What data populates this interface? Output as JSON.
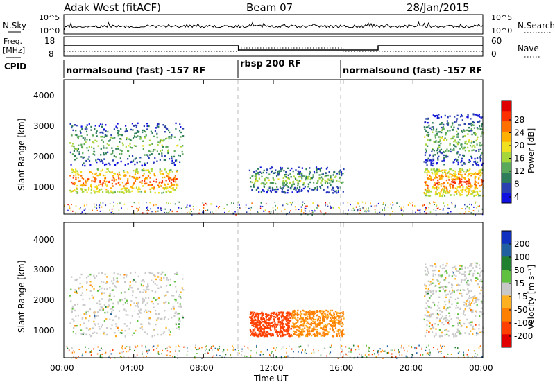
{
  "header": {
    "title": "Adak West (fitACF)",
    "beam": "Beam 07",
    "date": "28/Jan/2015"
  },
  "top_panels": {
    "nsky_label": "N.Sky",
    "nsearch_label": "N.Search",
    "nsky_ticks": [
      "10^5",
      "10^0"
    ],
    "nsearch_ticks": [
      "10^5",
      "10^0"
    ],
    "freq_label": "Freq.",
    "freq_unit": "[MHz]",
    "freq_ticks": [
      "18",
      "8"
    ],
    "nave_label": "Nave",
    "nave_ticks": [
      "60",
      "0"
    ],
    "cpid_label": "CPID"
  },
  "cpid_segments": [
    {
      "label": "normalsound (fast) -157 RF",
      "start_hour": 0,
      "end_hour": 10
    },
    {
      "label": "rbsp 200 RF",
      "start_hour": 10,
      "end_hour": 16
    },
    {
      "label": "normalsound (fast) -157 RF",
      "start_hour": 16,
      "end_hour": 24
    }
  ],
  "x_axis": {
    "label": "Time UT",
    "ticks": [
      "00:00",
      "04:00",
      "08:00",
      "12:00",
      "16:00",
      "20:00",
      "00:00"
    ],
    "range_hours": [
      0,
      24
    ]
  },
  "power_panel": {
    "ylabel": "Slant Range [km]",
    "yticks": [
      "4000",
      "3000",
      "2000",
      "1000"
    ],
    "colorbar_label": "Power [dB]",
    "colorbar_ticks": [
      "28",
      "24",
      "20",
      "16",
      "12",
      "8",
      "4"
    ],
    "colors": [
      "#1010e0",
      "#2a3fb0",
      "#2e7d5a",
      "#5aa85a",
      "#a6d63a",
      "#f0e020",
      "#ffb000",
      "#ff7000",
      "#ff3000",
      "#e00000"
    ]
  },
  "velocity_panel": {
    "ylabel": "Slant Range [km]",
    "yticks": [
      "4000",
      "3000",
      "2000",
      "1000"
    ],
    "colorbar_label": "Velocity [m s⁻¹]",
    "colorbar_ticks": [
      "200",
      "100",
      "50",
      "15",
      "-15",
      "-50",
      "-100",
      "-200"
    ],
    "colors": [
      "#1030c0",
      "#2060a0",
      "#208030",
      "#60c040",
      "#c8c8c8",
      "#ffb020",
      "#ff8000",
      "#ff4000",
      "#e00000"
    ]
  },
  "chart_data": [
    {
      "type": "heatmap",
      "title": "Power",
      "xlabel": "Time UT",
      "ylabel": "Slant Range [km]",
      "xlim_hours": [
        0,
        24
      ],
      "ylim_km": [
        180,
        4600
      ],
      "zlim_db": [
        0,
        32
      ],
      "regions": [
        {
          "t_start": 0.3,
          "t_end": 6.5,
          "r_low": 900,
          "r_high": 1700,
          "power_db": 26
        },
        {
          "t_start": 0.3,
          "t_end": 6.8,
          "r_low": 1800,
          "r_high": 3200,
          "power_db": 14
        },
        {
          "t_start": 10.6,
          "t_end": 16.0,
          "r_low": 900,
          "r_high": 1750,
          "power_db": 14
        },
        {
          "t_start": 20.6,
          "t_end": 24.0,
          "r_low": 800,
          "r_high": 1700,
          "power_db": 26
        },
        {
          "t_start": 20.6,
          "t_end": 24.0,
          "r_low": 1800,
          "r_high": 3500,
          "power_db": 14
        }
      ]
    },
    {
      "type": "heatmap",
      "title": "Velocity",
      "xlabel": "Time UT",
      "ylabel": "Slant Range [km]",
      "xlim_hours": [
        0,
        24
      ],
      "ylim_km": [
        180,
        4600
      ],
      "zlim_ms": [
        -200,
        200
      ],
      "regions": [
        {
          "t_start": 0.3,
          "t_end": 6.8,
          "r_low": 900,
          "r_high": 3000,
          "velocity_ms": 0
        },
        {
          "t_start": 10.6,
          "t_end": 13.0,
          "r_low": 900,
          "r_high": 1700,
          "velocity_ms": -120
        },
        {
          "t_start": 13.0,
          "t_end": 16.0,
          "r_low": 900,
          "r_high": 1750,
          "velocity_ms": -60
        },
        {
          "t_start": 20.6,
          "t_end": 24.0,
          "r_low": 900,
          "r_high": 3300,
          "velocity_ms": 0
        }
      ]
    }
  ]
}
